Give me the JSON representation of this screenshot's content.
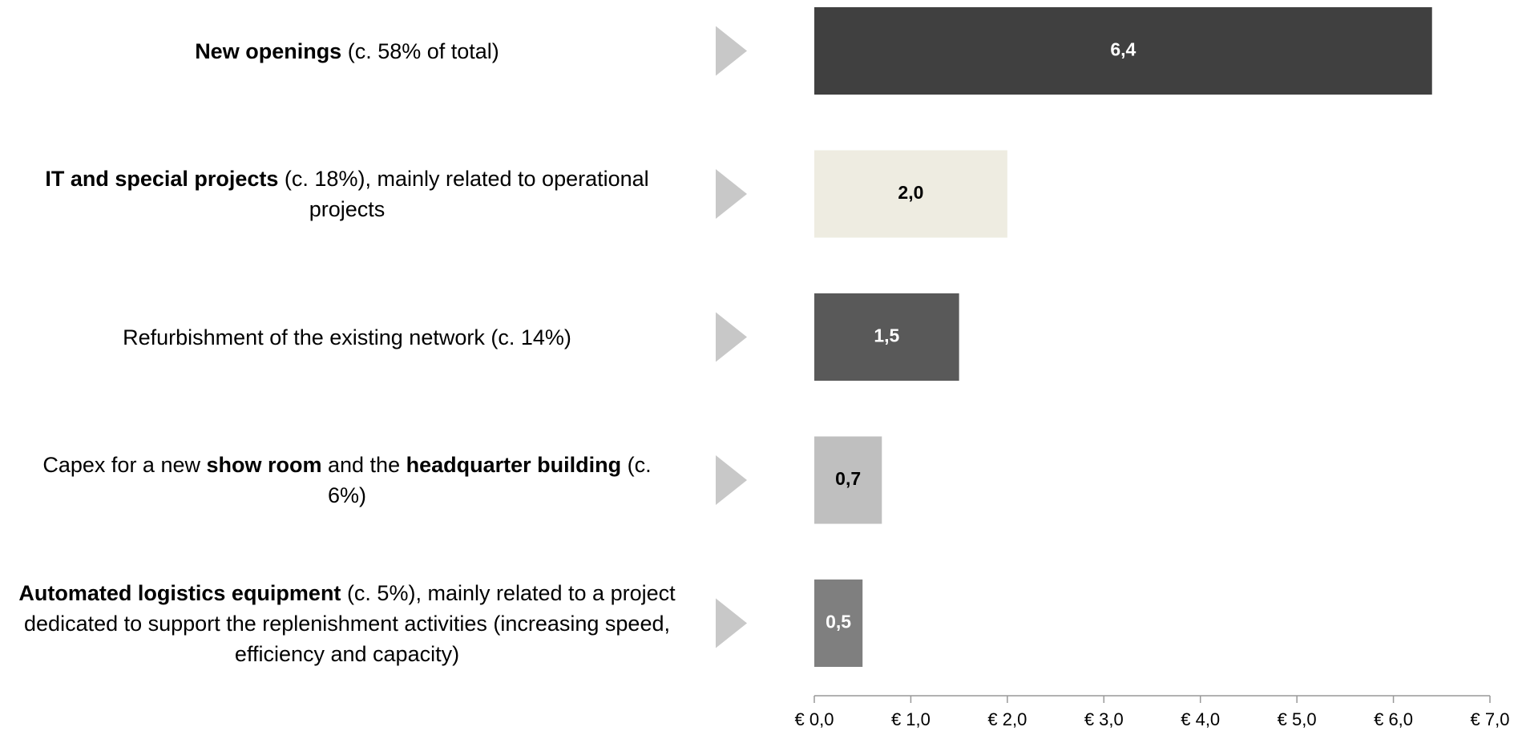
{
  "chart_data": {
    "type": "bar",
    "orientation": "horizontal",
    "categories": [
      [
        {
          "text": "New openings",
          "bold": true
        },
        {
          "text": " (c. 58% of total)",
          "bold": false
        }
      ],
      [
        {
          "text": "IT and special projects",
          "bold": true
        },
        {
          "text": " (c. 18%), mainly related to operational projects",
          "bold": false
        }
      ],
      [
        {
          "text": "Refurbishment of the existing network (c. 14%)",
          "bold": false
        }
      ],
      [
        {
          "text": "Capex for a new ",
          "bold": false
        },
        {
          "text": "show room",
          "bold": true
        },
        {
          "text": " and the ",
          "bold": false
        },
        {
          "text": "headquarter building",
          "bold": true
        },
        {
          "text": " (c. 6%)",
          "bold": false
        }
      ],
      [
        {
          "text": "Automated logistics equipment",
          "bold": true
        },
        {
          "text": " (c. 5%), mainly related to a project dedicated to support the replenishment activities (increasing speed, efficiency and capacity)",
          "bold": false
        }
      ]
    ],
    "values": [
      6.4,
      2.0,
      1.5,
      0.7,
      0.5
    ],
    "value_labels": [
      "6,4",
      "2,0",
      "1,5",
      "0,7",
      "0,5"
    ],
    "colors": [
      "#404040",
      "#eeece1",
      "#595959",
      "#bfbfbf",
      "#7f7f7f"
    ],
    "label_colors": [
      "#ffffff",
      "#000000",
      "#ffffff",
      "#000000",
      "#ffffff"
    ],
    "xlim": [
      0,
      7
    ],
    "xticks": [
      {
        "value": 0,
        "label": "€ 0,0"
      },
      {
        "value": 1,
        "label": "€ 1,0"
      },
      {
        "value": 2,
        "label": "€ 2,0"
      },
      {
        "value": 3,
        "label": "€ 3,0"
      },
      {
        "value": 4,
        "label": "€ 4,0"
      },
      {
        "value": 5,
        "label": "€ 5,0"
      },
      {
        "value": 6,
        "label": "€ 6,0"
      },
      {
        "value": 7,
        "label": "€ 7,0"
      }
    ]
  }
}
